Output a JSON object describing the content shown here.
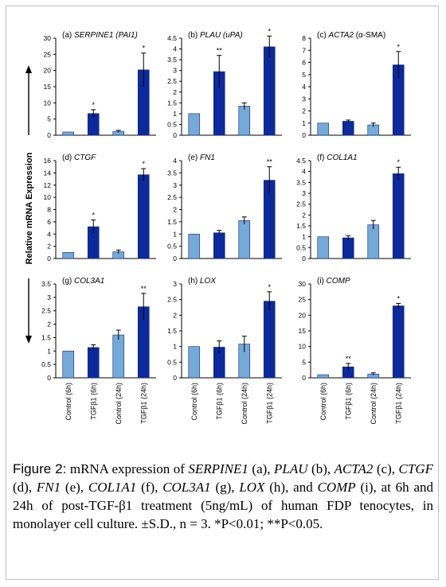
{
  "ylabel": "Relative mRNA Expression",
  "categories": [
    "Control (6h)",
    "TGFβ1 (6h)",
    "Control (24h)",
    "TGFβ1 (24h)"
  ],
  "colors": {
    "control": "#74a9d8",
    "tgf": "#0c2a9c",
    "axis": "#000000"
  },
  "chart_data": [
    {
      "type": "bar",
      "title": "(a) SERPINE1 (PAI1)",
      "title_plain": "(a) ",
      "title_italic": "SERPINE1 (PAI1)",
      "ylim": [
        0,
        30
      ],
      "ticks": [
        0,
        5,
        10,
        15,
        20,
        25,
        30
      ],
      "values": [
        1,
        6.7,
        1.2,
        20.2
      ],
      "errors": [
        0,
        1.2,
        0.3,
        5.2
      ],
      "sig": [
        "",
        "*",
        "",
        "*"
      ]
    },
    {
      "type": "bar",
      "title": "(b) PLAU (uPA)",
      "title_plain": "(b) ",
      "title_italic": "PLAU (uPA)",
      "ylim": [
        0,
        4.5
      ],
      "ticks": [
        0,
        0.5,
        1,
        1.5,
        2,
        2.5,
        3,
        3.5,
        4,
        4.5
      ],
      "values": [
        1,
        2.95,
        1.35,
        4.1
      ],
      "errors": [
        0,
        0.75,
        0.15,
        0.5
      ],
      "sig": [
        "",
        "**",
        "",
        "*"
      ]
    },
    {
      "type": "bar",
      "title": "(c) ACTA2 (α-SMA)",
      "title_plain": "(c) ",
      "title_italic": "ACTA2",
      "title_tail": " (α-SMA)",
      "ylim": [
        0,
        8
      ],
      "ticks": [
        0,
        1,
        2,
        3,
        4,
        5,
        6,
        7,
        8
      ],
      "values": [
        1,
        1.15,
        0.85,
        5.8
      ],
      "errors": [
        0,
        0.1,
        0.15,
        1.1
      ],
      "sig": [
        "",
        "",
        "",
        "*"
      ]
    },
    {
      "type": "bar",
      "title": "(d) CTGF",
      "title_plain": "(d) ",
      "title_italic": "CTGF",
      "ylim": [
        0,
        16
      ],
      "ticks": [
        0,
        2,
        4,
        6,
        8,
        10,
        12,
        14,
        16
      ],
      "values": [
        1,
        5.2,
        1.1,
        13.7
      ],
      "errors": [
        0,
        1.1,
        0.3,
        1.0
      ],
      "sig": [
        "",
        "*",
        "",
        "*"
      ]
    },
    {
      "type": "bar",
      "title": "(e) FN1",
      "title_plain": "(e) ",
      "title_italic": "FN1",
      "ylim": [
        0,
        4
      ],
      "ticks": [
        0,
        0.5,
        1,
        1.5,
        2,
        2.5,
        3,
        3.5,
        4
      ],
      "values": [
        1,
        1.05,
        1.55,
        3.2
      ],
      "errors": [
        0,
        0.1,
        0.15,
        0.55
      ],
      "sig": [
        "",
        "",
        "",
        "**"
      ]
    },
    {
      "type": "bar",
      "title": "(f) COL1A1",
      "title_plain": "(f) ",
      "title_italic": "COL1A1",
      "ylim": [
        0,
        4.5
      ],
      "ticks": [
        0,
        0.5,
        1,
        1.5,
        2,
        2.5,
        3,
        3.5,
        4,
        4.5
      ],
      "values": [
        1,
        0.95,
        1.55,
        3.9
      ],
      "errors": [
        0,
        0.1,
        0.2,
        0.3
      ],
      "sig": [
        "",
        "",
        "",
        "*"
      ]
    },
    {
      "type": "bar",
      "title": "(g) COL3A1",
      "title_plain": "(g) ",
      "title_italic": "COL3A1",
      "ylim": [
        0,
        3.5
      ],
      "ticks": [
        0,
        0.5,
        1,
        1.5,
        2,
        2.5,
        3,
        3.5
      ],
      "values": [
        1,
        1.13,
        1.6,
        2.65
      ],
      "errors": [
        0,
        0.1,
        0.18,
        0.5
      ],
      "sig": [
        "",
        "",
        "",
        "**"
      ]
    },
    {
      "type": "bar",
      "title": "(h) LOX",
      "title_plain": "(h) ",
      "title_italic": "LOX",
      "ylim": [
        0,
        3
      ],
      "ticks": [
        0,
        0.5,
        1,
        1.5,
        2,
        2.5,
        3
      ],
      "values": [
        1,
        0.98,
        1.08,
        2.45
      ],
      "errors": [
        0,
        0.2,
        0.25,
        0.3
      ],
      "sig": [
        "",
        "",
        "",
        "*"
      ]
    },
    {
      "type": "bar",
      "title": "(i) COMP",
      "title_plain": "(i) ",
      "title_italic": "COMP",
      "ylim": [
        0,
        30
      ],
      "ticks": [
        0,
        5,
        10,
        15,
        20,
        25,
        30
      ],
      "values": [
        1,
        3.5,
        1.2,
        23
      ],
      "errors": [
        0,
        1.1,
        0.4,
        0.8
      ],
      "sig": [
        "",
        "**",
        "",
        "*"
      ]
    }
  ],
  "caption": {
    "label": "Figure 2:",
    "parts": [
      {
        "t": " mRNA expression of ",
        "i": false
      },
      {
        "t": "SERPINE1",
        "i": true
      },
      {
        "t": " (a), ",
        "i": false
      },
      {
        "t": "PLAU",
        "i": true
      },
      {
        "t": " (b), ",
        "i": false
      },
      {
        "t": "ACTA2",
        "i": true
      },
      {
        "t": " (c), ",
        "i": false
      },
      {
        "t": "CTGF",
        "i": true
      },
      {
        "t": " (d), ",
        "i": false
      },
      {
        "t": "FN1",
        "i": true
      },
      {
        "t": " (e), ",
        "i": false
      },
      {
        "t": "COL1A1",
        "i": true
      },
      {
        "t": " (f), ",
        "i": false
      },
      {
        "t": "COL3A1",
        "i": true
      },
      {
        "t": " (g), ",
        "i": false
      },
      {
        "t": "LOX",
        "i": true
      },
      {
        "t": " (h), and ",
        "i": false
      },
      {
        "t": "COMP",
        "i": true
      },
      {
        "t": " (i), at 6h and 24h of post-TGF-β1 treatment (5ng/mL) of human FDP tenocytes, in monolayer cell culture. ±S.D., n = 3. *P<0.01; **P<0.05.",
        "i": false
      }
    ]
  }
}
